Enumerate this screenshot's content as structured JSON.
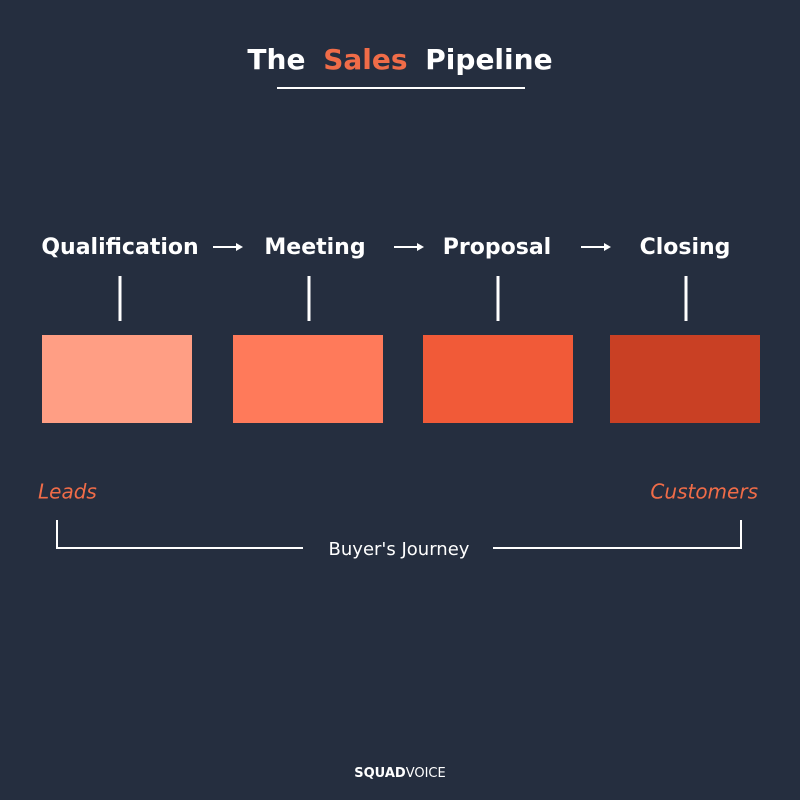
{
  "title": {
    "prefix": "The",
    "highlight": "Sales",
    "suffix": "Pipeline"
  },
  "stages": [
    {
      "label": "Qualification",
      "color": "#ff9e84"
    },
    {
      "label": "Meeting",
      "color": "#ff7a5a"
    },
    {
      "label": "Proposal",
      "color": "#f15a38"
    },
    {
      "label": "Closing",
      "color": "#c94024"
    }
  ],
  "start_label": "Leads",
  "end_label": "Customers",
  "journey_label": "Buyer's Journey",
  "brand": {
    "bold": "SQUAD",
    "light": "VOICE"
  }
}
